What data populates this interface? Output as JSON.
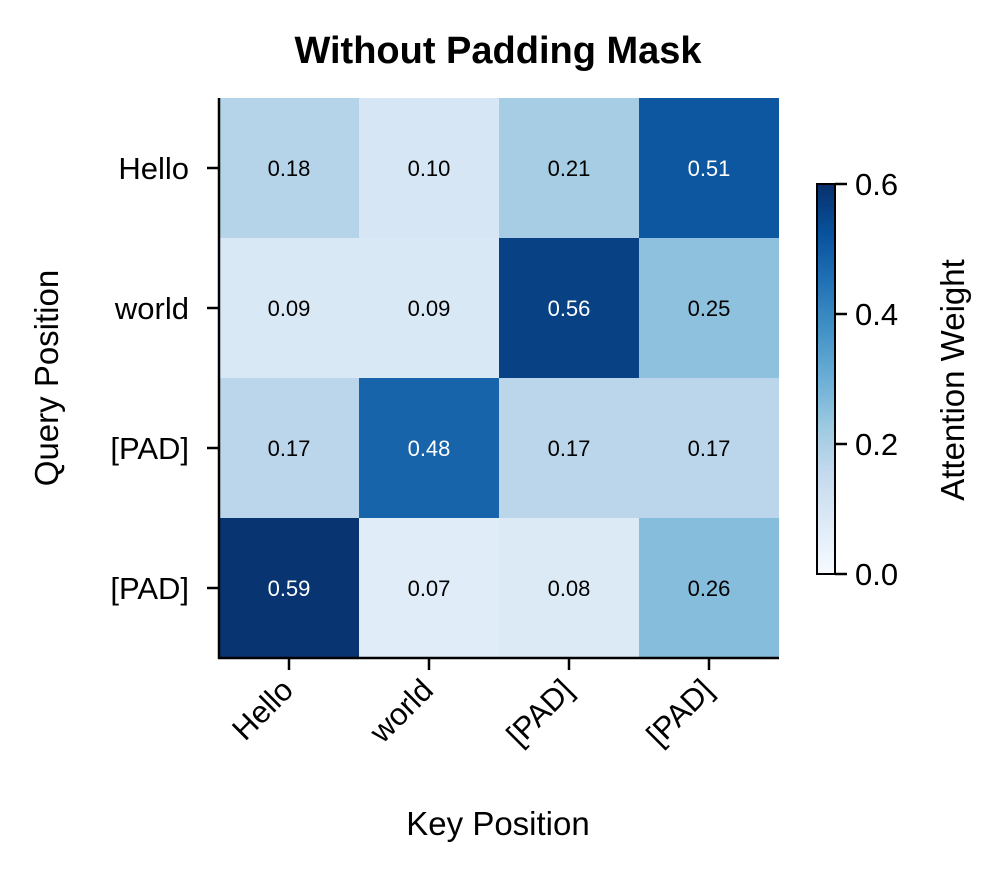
{
  "chart_data": {
    "type": "heatmap",
    "title": "Without Padding Mask",
    "xlabel": "Key Position",
    "ylabel": "Query Position",
    "x_categories": [
      "Hello",
      "world",
      "[PAD]",
      "[PAD]"
    ],
    "y_categories": [
      "Hello",
      "world",
      "[PAD]",
      "[PAD]"
    ],
    "values": [
      [
        0.18,
        0.1,
        0.21,
        0.51
      ],
      [
        0.09,
        0.09,
        0.56,
        0.25
      ],
      [
        0.17,
        0.48,
        0.17,
        0.17
      ],
      [
        0.59,
        0.07,
        0.08,
        0.26
      ]
    ],
    "value_labels": [
      [
        "0.18",
        "0.10",
        "0.21",
        "0.51"
      ],
      [
        "0.09",
        "0.09",
        "0.56",
        "0.25"
      ],
      [
        "0.17",
        "0.48",
        "0.17",
        "0.17"
      ],
      [
        "0.59",
        "0.07",
        "0.08",
        "0.26"
      ]
    ],
    "colormap": "Blues",
    "vmin": 0.0,
    "vmax": 0.6,
    "colorbar": {
      "label": "Attention Weight",
      "ticks": [
        0.0,
        0.2,
        0.4,
        0.6
      ],
      "tick_labels": [
        "0.0",
        "0.2",
        "0.4",
        "0.6"
      ]
    }
  }
}
